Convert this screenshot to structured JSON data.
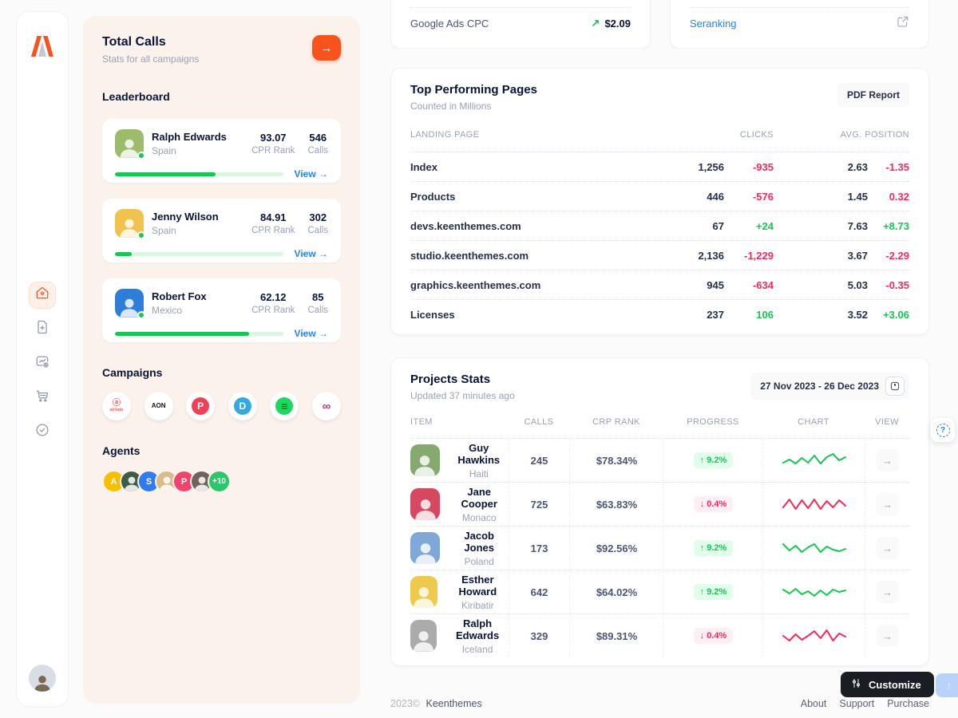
{
  "colors": {
    "accent_orange": "#F8531D",
    "success_green": "#17C653",
    "danger_red": "#F8285A",
    "link_blue": "#1B84FF"
  },
  "icons": {
    "panel_arrow": "→",
    "view_arrow": "→",
    "trend_up": "↗",
    "scroll_top": "↑",
    "help": "?",
    "row_view_arrow": "→"
  },
  "panel": {
    "title": "Total Calls",
    "subtitle": "Stats for all campaigns",
    "leaderboard_title": "Leaderboard",
    "leaders": [
      {
        "name": "Ralph Edwards",
        "country": "Spain",
        "cpr": "93.07",
        "cpr_label": "CPR Rank",
        "calls": "546",
        "calls_label": "Calls",
        "progress": "60%",
        "view_label": "View →",
        "avatar_bg": "#9CBB6B"
      },
      {
        "name": "Jenny Wilson",
        "country": "Spain",
        "cpr": "84.91",
        "cpr_label": "CPR Rank",
        "calls": "302",
        "calls_label": "Calls",
        "progress": "10%",
        "view_label": "View →",
        "avatar_bg": "#F0C24E"
      },
      {
        "name": "Robert Fox",
        "country": "Mexico",
        "cpr": "62.12",
        "cpr_label": "CPR Rank",
        "calls": "85",
        "calls_label": "Calls",
        "progress": "80%",
        "view_label": "View →",
        "avatar_bg": "#2E7ED9"
      }
    ],
    "campaigns_title": "Campaigns",
    "campaigns": [
      {
        "name": "airbnb",
        "glyph": "ⓐ",
        "glyph_size": "10px",
        "word": "airbnb",
        "word_color": "#FF5A5F",
        "fg": "#FF5A5F",
        "logo_bg": "transparent"
      },
      {
        "name": "aon",
        "glyph": "AON",
        "glyph_size": "8px",
        "fg": "#17171A",
        "logo_bg": "transparent"
      },
      {
        "name": "pocket",
        "glyph": "P",
        "glyph_size": "12px",
        "fg": "#FFFFFF",
        "logo_bg": "#EF4056"
      },
      {
        "name": "disqus",
        "glyph": "D",
        "glyph_size": "12px",
        "fg": "#FFFFFF",
        "logo_bg": "#33A9E0"
      },
      {
        "name": "spotify",
        "glyph": "≡",
        "glyph_size": "14px",
        "fg": "#14531F",
        "logo_bg": "#1ED760"
      },
      {
        "name": "trefoil",
        "glyph": "∞",
        "glyph_size": "15px",
        "fg": "#C0368B",
        "logo_bg": "transparent"
      }
    ],
    "agents_title": "Agents",
    "agents": [
      {
        "kind": "letter",
        "label": "A",
        "bg": "#F6C000",
        "fg": "#FFFFFF"
      },
      {
        "kind": "photo",
        "label": "",
        "bg": "#3F5D44",
        "fg": "#FFFFFF"
      },
      {
        "kind": "letter",
        "label": "S",
        "bg": "#2F7CF0",
        "fg": "#FFFFFF"
      },
      {
        "kind": "photo",
        "label": "",
        "bg": "#D9BC8A",
        "fg": "#FFFFFF"
      },
      {
        "kind": "letter",
        "label": "P",
        "bg": "#F1416C",
        "fg": "#FFFFFF"
      },
      {
        "kind": "photo",
        "label": "",
        "bg": "#71625E",
        "fg": "#FFFFFF"
      },
      {
        "kind": "more",
        "label": "+10",
        "bg": "#2DC76B",
        "fg": "#FFFFFF"
      }
    ]
  },
  "topcards": {
    "left_row": {
      "label": "Google Ads CPC",
      "trend_glyph": "↗",
      "value": "$2.09"
    },
    "right_row": {
      "label": "Seranking"
    }
  },
  "pages_card": {
    "title": "Top Performing Pages",
    "subtitle": "Counted in Millions",
    "action": "PDF Report",
    "columns": [
      "LANDING PAGE",
      "CLICKS",
      "AVG. POSITION"
    ],
    "rows": [
      {
        "page": "Index",
        "clicks": "1,256",
        "clicks_delta": "-935",
        "clicks_dir": "down",
        "pos": "2.63",
        "pos_delta": "-1.35",
        "pos_dir": "down"
      },
      {
        "page": "Products",
        "clicks": "446",
        "clicks_delta": "-576",
        "clicks_dir": "down",
        "pos": "1.45",
        "pos_delta": "0.32",
        "pos_dir": "down"
      },
      {
        "page": "devs.keenthemes.com",
        "clicks": "67",
        "clicks_delta": "+24",
        "clicks_dir": "up",
        "pos": "7.63",
        "pos_delta": "+8.73",
        "pos_dir": "up"
      },
      {
        "page": "studio.keenthemes.com",
        "clicks": "2,136",
        "clicks_delta": "-1,229",
        "clicks_dir": "down",
        "pos": "3.67",
        "pos_delta": "-2.29",
        "pos_dir": "down"
      },
      {
        "page": "graphics.keenthemes.com",
        "clicks": "945",
        "clicks_delta": "-634",
        "clicks_dir": "down",
        "pos": "5.03",
        "pos_delta": "-0.35",
        "pos_dir": "down"
      },
      {
        "page": "Licenses",
        "clicks": "237",
        "clicks_delta": "106",
        "clicks_dir": "up",
        "pos": "3.52",
        "pos_delta": "+3.06",
        "pos_dir": "up"
      }
    ]
  },
  "projects_card": {
    "title": "Projects Stats",
    "subtitle": "Updated 37 minutes ago",
    "date_range": "27 Nov 2023 - 26 Dec 2023",
    "columns": [
      "ITEM",
      "CALLS",
      "CRP RANK",
      "PROGRESS",
      "CHART",
      "VIEW"
    ],
    "rows": [
      {
        "name": "Guy Hawkins",
        "country": "Haiti",
        "calls": "245",
        "crp": "$78.34%",
        "progress_text": "↑ 9.2%",
        "dir": "up",
        "avatar_bg": "#86A96F",
        "spark": [
          7,
          11,
          6,
          13,
          7,
          16,
          6,
          14,
          18,
          10,
          14
        ]
      },
      {
        "name": "Jane Cooper",
        "country": "Monaco",
        "calls": "725",
        "crp": "$63.83%",
        "progress_text": "↓ 0.4%",
        "dir": "down",
        "avatar_bg": "#D5485F",
        "spark": [
          6,
          16,
          4,
          15,
          5,
          16,
          4,
          14,
          6,
          15,
          8
        ]
      },
      {
        "name": "Jacob Jones",
        "country": "Poland",
        "calls": "173",
        "crp": "$92.56%",
        "progress_text": "↑ 9.2%",
        "dir": "up",
        "avatar_bg": "#7FA8D9",
        "spark": [
          15,
          7,
          13,
          5,
          11,
          15,
          5,
          12,
          8,
          6,
          9
        ]
      },
      {
        "name": "Esther Howard",
        "country": "Kiribatir",
        "calls": "642",
        "crp": "$64.02%",
        "progress_text": "↑ 9.2%",
        "dir": "up",
        "avatar_bg": "#EFC94C",
        "spark": [
          13,
          8,
          14,
          7,
          11,
          5,
          12,
          6,
          13,
          10,
          12
        ]
      },
      {
        "name": "Ralph Edwards",
        "country": "Iceland",
        "calls": "329",
        "crp": "$89.31%",
        "progress_text": "↓ 0.4%",
        "dir": "down",
        "avatar_bg": "#ABABAB",
        "spark": [
          10,
          4,
          12,
          5,
          10,
          16,
          7,
          17,
          4,
          13,
          9
        ]
      }
    ]
  },
  "footer": {
    "year": "2023©",
    "brand": "Keenthemes",
    "links": [
      {
        "label": "About"
      },
      {
        "label": "Support"
      },
      {
        "label": "Purchase"
      }
    ],
    "customize_label": "Customize"
  }
}
